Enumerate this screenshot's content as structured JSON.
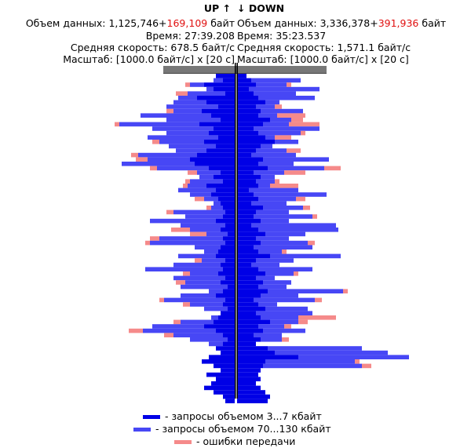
{
  "up": {
    "title": "UP",
    "arrow": "↑",
    "volume_label": "Объем данных:",
    "volume_value": "1,125,746+",
    "volume_errors": "169,109",
    "volume_unit": "байт",
    "time": "Время: 27:39.208",
    "speed": "Средняя скорость: 678.5 байт/с",
    "scale": "Масштаб: [1000.0 байт/с] x [20 с]"
  },
  "down": {
    "title": "DOWN",
    "arrow": "↓",
    "volume_label": "Объем данных:",
    "volume_value": "3,336,378+",
    "volume_errors": "391,936",
    "volume_unit": "байт",
    "time": "Время: 35:23.537",
    "speed": "Средняя скорость: 1,571.1 байт/с",
    "scale": "Масштаб: [1000.0 байт/с] x [20 с]"
  },
  "legend": [
    {
      "label": "- запросы объемом 3...7 кбайт",
      "color": "#0000e6"
    },
    {
      "label": "- запросы объемом 70...130 кбайт",
      "color": "#4747f5"
    },
    {
      "label": "- ошибки передачи",
      "color": "#f58a8a"
    }
  ],
  "chart_data": {
    "type": "bar",
    "orientation": "horizontal, mirrored",
    "interval_seconds": 20,
    "unit": "байт/с",
    "up": {
      "small": [
        0.8,
        0.5,
        1.3,
        0.9,
        0.4,
        1.6,
        1.2,
        0.7,
        1.4,
        1.0,
        0.6,
        1.5,
        0.9,
        1.1,
        0.7,
        1.3,
        0.8,
        1.2,
        1.6,
        1.9,
        1.7,
        1.1,
        0.6,
        0.9,
        0.5,
        1.2,
        0.8,
        1.0,
        0.7,
        0.6,
        0.5,
        0.4,
        0.5,
        0.8,
        0.4,
        0.6,
        0.3,
        0.5,
        0.4,
        0.6,
        0.7,
        0.8,
        0.4,
        0.6,
        0.5,
        0.7,
        0.4,
        0.6,
        0.3,
        0.5,
        0.8,
        0.4,
        0.5,
        0.3,
        0.6,
        0.7,
        0.9,
        1.3,
        0.8,
        0.5,
        0.3,
        0.5,
        0.8,
        0.6,
        1.1,
        1.4,
        0.9,
        0.6,
        1.2,
        0.8,
        1.0,
        1.3,
        0.9,
        0.5,
        0.4
      ],
      "large": [
        0.0,
        0.4,
        0.6,
        0.3,
        1.6,
        0.8,
        1.4,
        2.2,
        1.2,
        3.0,
        2.3,
        3.4,
        2.6,
        1.8,
        3.0,
        1.9,
        2.0,
        1.3,
        2.5,
        1.8,
        3.1,
        2.2,
        1.0,
        0.6,
        1.4,
        0.8,
        1.6,
        0.9,
        0.6,
        0.3,
        0.5,
        2.2,
        1.6,
        2.8,
        1.9,
        1.3,
        0.9,
        2.7,
        3.2,
        1.1,
        0.6,
        1.6,
        1.0,
        2.0,
        3.3,
        1.2,
        2.2,
        1.5,
        2.0,
        0.6,
        1.5,
        2.6,
        1.4,
        1.0,
        0.0,
        0.3,
        1.4,
        2.2,
        3.1,
        2.1,
        1.6,
        0.6,
        0.0,
        0.0,
        0.0,
        0.0,
        0.0,
        0.0,
        0.0,
        0.0,
        0.0,
        0.0,
        0.0,
        0.0,
        0.0
      ],
      "errors": [
        0.0,
        0.0,
        0.2,
        0.0,
        0.5,
        0.0,
        0.0,
        0.0,
        0.3,
        0.0,
        0.0,
        0.2,
        0.0,
        0.0,
        0.0,
        0.3,
        0.0,
        0.0,
        0.3,
        0.5,
        0.0,
        0.3,
        0.4,
        0.0,
        0.2,
        0.2,
        0.0,
        0.0,
        0.4,
        0.0,
        0.2,
        0.3,
        0.0,
        0.0,
        0.0,
        0.8,
        0.7,
        0.4,
        0.2,
        0.0,
        0.0,
        0.0,
        0.3,
        0.0,
        0.0,
        0.3,
        0.0,
        0.4,
        0.0,
        0.0,
        0.0,
        0.2,
        0.3,
        0.0,
        0.0,
        0.0,
        0.3,
        0.0,
        0.6,
        0.4,
        0.0,
        0.0,
        0.0,
        0.0,
        0.0,
        0.0,
        0.0,
        0.0,
        0.0,
        0.0,
        0.0,
        0.0,
        0.0,
        0.0,
        0.0
      ]
    },
    "down": {
      "small": [
        0.4,
        0.6,
        0.8,
        0.5,
        0.7,
        0.9,
        1.2,
        0.8,
        1.0,
        0.9,
        1.4,
        1.1,
        0.7,
        0.9,
        1.2,
        1.6,
        1.0,
        0.8,
        0.6,
        1.1,
        0.9,
        1.3,
        0.7,
        1.0,
        0.8,
        0.9,
        0.5,
        0.7,
        0.9,
        0.6,
        1.1,
        0.8,
        0.7,
        1.0,
        0.6,
        0.9,
        1.2,
        0.8,
        1.0,
        0.7,
        0.9,
        1.4,
        0.8,
        0.6,
        0.9,
        1.2,
        0.8,
        1.1,
        0.9,
        1.3,
        1.0,
        0.7,
        0.9,
        1.2,
        0.8,
        1.0,
        1.4,
        0.9,
        1.1,
        0.7,
        1.0,
        0.8,
        1.3,
        1.6,
        2.6,
        1.2,
        1.1,
        1.0,
        0.9,
        1.0,
        0.8,
        1.0,
        1.2,
        1.4,
        1.3
      ],
      "large": [
        0.0,
        2.1,
        1.3,
        3.0,
        1.8,
        2.4,
        0.6,
        0.8,
        1.8,
        0.8,
        0.9,
        1.1,
        2.8,
        1.8,
        0.4,
        1.0,
        0.5,
        1.3,
        1.9,
        2.8,
        1.5,
        2.4,
        1.3,
        0.6,
        0.8,
        0.5,
        2.1,
        3.1,
        1.6,
        1.5,
        1.7,
        1.4,
        2.5,
        1.2,
        3.6,
        3.4,
        1.7,
        1.4,
        2.0,
        2.5,
        1.0,
        3.0,
        1.6,
        1.2,
        2.3,
        1.2,
        0.8,
        1.2,
        1.2,
        3.2,
        1.6,
        2.6,
        0.8,
        1.8,
        2.4,
        1.6,
        1.2,
        1.1,
        1.8,
        1.2,
        0.9,
        0.0,
        4.0,
        4.8,
        4.7,
        3.8,
        4.2,
        0.0,
        0.0,
        0.0,
        0.0,
        0.0,
        0.0,
        0.0,
        0.0
      ],
      "errors": [
        0.0,
        0.0,
        0.2,
        0.0,
        0.0,
        0.0,
        0.0,
        0.3,
        0.0,
        1.2,
        0.5,
        1.3,
        0.0,
        0.2,
        0.7,
        0.0,
        0.0,
        0.6,
        0.0,
        0.0,
        0.0,
        0.7,
        0.9,
        0.0,
        0.2,
        1.2,
        0.0,
        0.0,
        0.4,
        0.0,
        0.3,
        0.0,
        0.2,
        0.0,
        0.0,
        0.0,
        0.0,
        0.0,
        0.3,
        0.0,
        0.2,
        0.0,
        0.0,
        0.0,
        0.0,
        0.2,
        0.0,
        0.0,
        0.0,
        0.2,
        0.0,
        0.3,
        0.0,
        0.0,
        0.0,
        1.6,
        0.4,
        0.3,
        0.0,
        0.0,
        0.3,
        0.0,
        0.0,
        0.0,
        0.0,
        0.2,
        0.4,
        0.0,
        0.0,
        0.0,
        0.0,
        0.0,
        0.0,
        0.0,
        0.0
      ]
    }
  }
}
